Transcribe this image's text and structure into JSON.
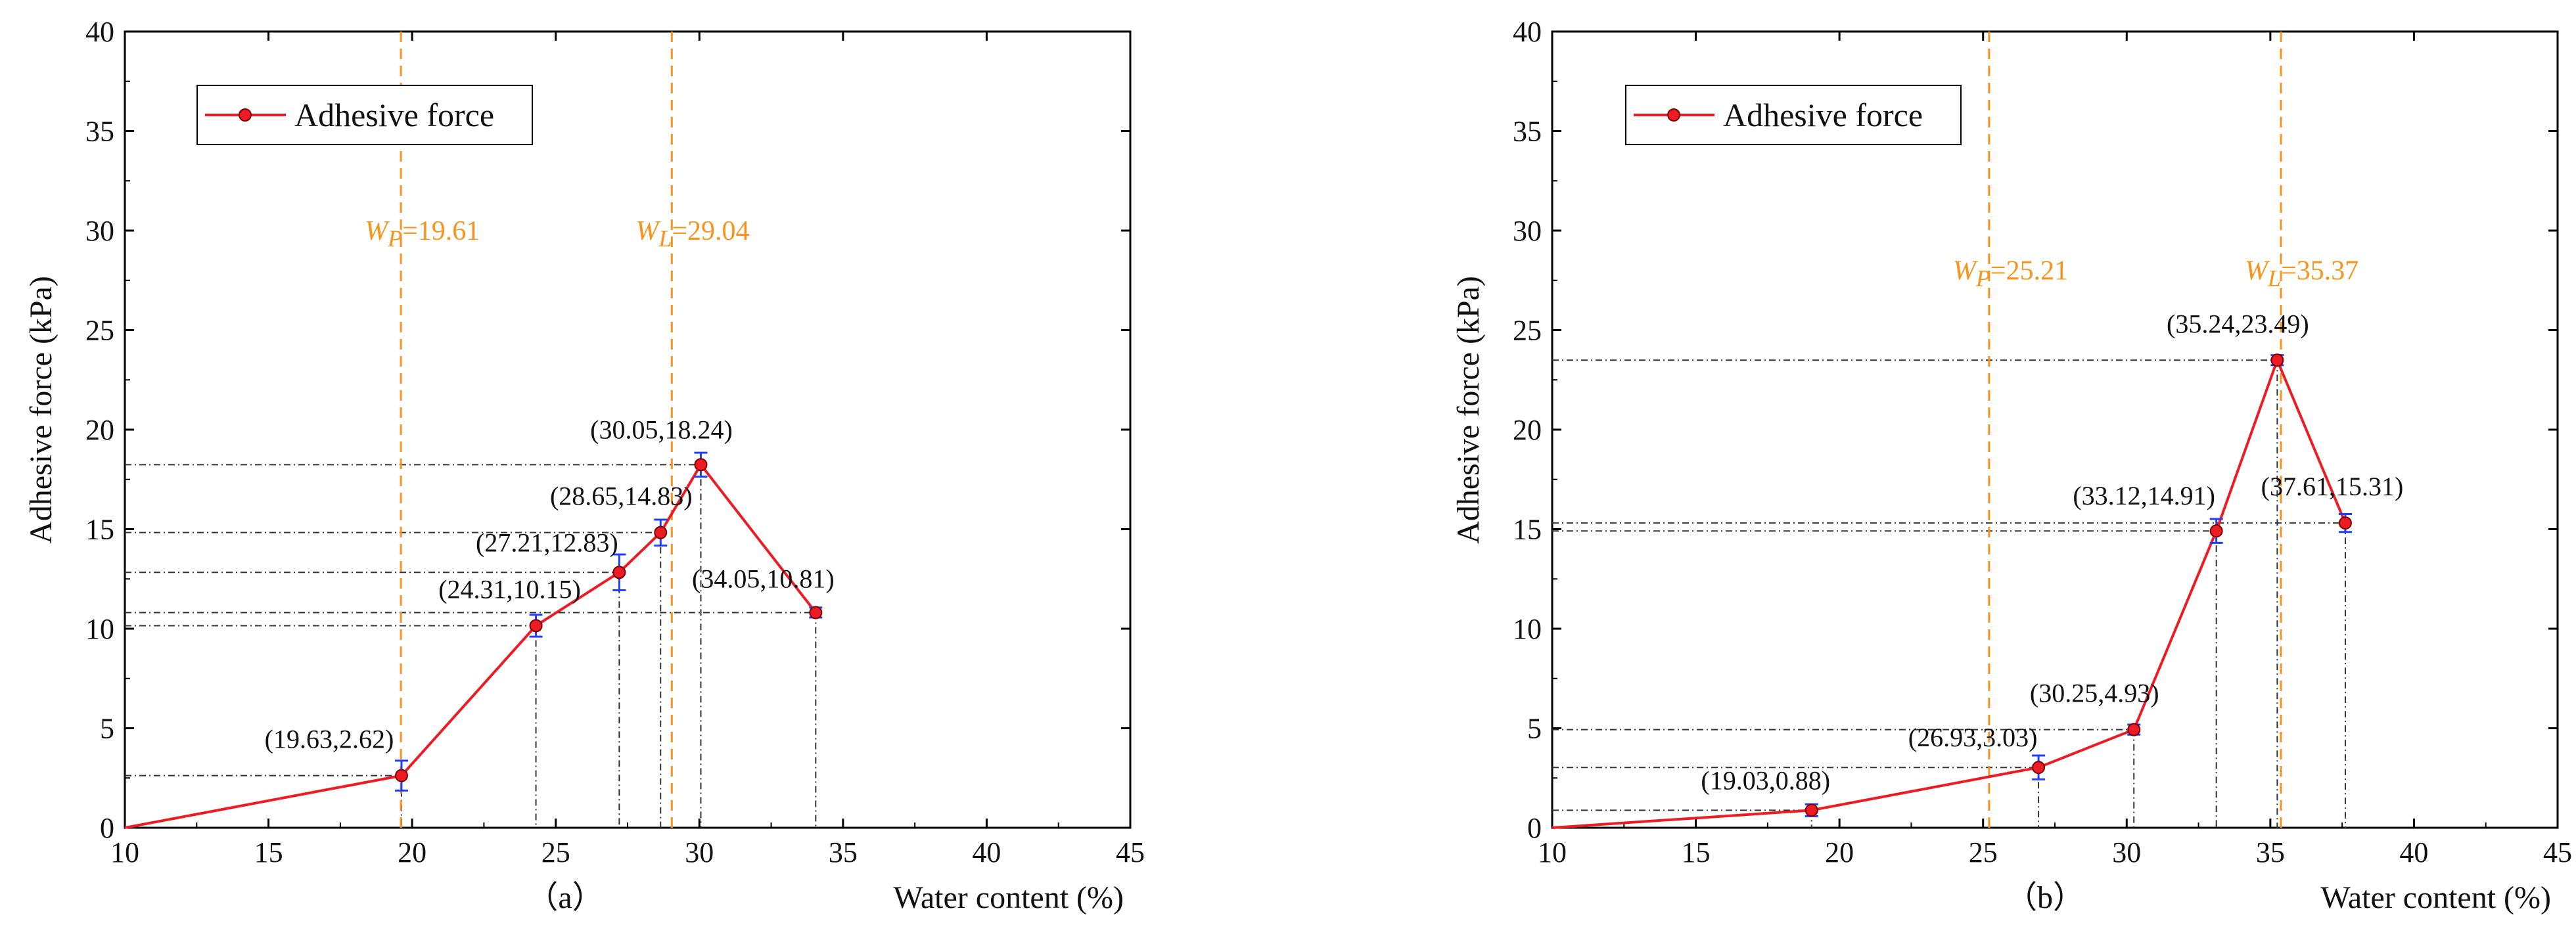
{
  "chart_data": [
    {
      "type": "line",
      "panel_label": "（a）",
      "xlabel": "Water content (%)",
      "ylabel": "Adhesive force (kPa)",
      "xlim": [
        10,
        45
      ],
      "ylim": [
        0,
        40
      ],
      "xticks": [
        "10",
        "15",
        "20",
        "25",
        "30",
        "35",
        "40",
        "45"
      ],
      "yticks": [
        "0",
        "5",
        "10",
        "15",
        "20",
        "25",
        "30",
        "35",
        "40"
      ],
      "legend": "Adhesive force",
      "line_color": "#ED1C24",
      "error_color": "#1F3FFF",
      "limit_color": "#F7941D",
      "points": [
        {
          "x": 10.0,
          "y": 0.0,
          "err": 0,
          "label": ""
        },
        {
          "x": 19.63,
          "y": 2.62,
          "err": 0.75,
          "label": "(19.63,2.62)"
        },
        {
          "x": 24.31,
          "y": 10.15,
          "err": 0.55,
          "label": "(24.31,10.15)"
        },
        {
          "x": 27.21,
          "y": 12.83,
          "err": 0.9,
          "label": "(27.21,12.83)"
        },
        {
          "x": 28.65,
          "y": 14.83,
          "err": 0.65,
          "label": "(28.65,14.83)"
        },
        {
          "x": 30.05,
          "y": 18.24,
          "err": 0.6,
          "label": "(30.05,18.24)"
        },
        {
          "x": 34.05,
          "y": 10.81,
          "err": 0.25,
          "label": "(34.05,10.81)"
        }
      ],
      "limits": [
        {
          "value": 19.61,
          "symbol": "W",
          "sub": "P",
          "text": "=19.61",
          "label_y": 30
        },
        {
          "value": 29.04,
          "symbol": "W",
          "sub": "L",
          "text": "=29.04",
          "label_y": 30
        }
      ]
    },
    {
      "type": "line",
      "panel_label": "（b）",
      "xlabel": "Water content (%)",
      "ylabel": "Adhesive force (kPa)",
      "xlim": [
        10,
        45
      ],
      "ylim": [
        0,
        40
      ],
      "xticks": [
        "10",
        "15",
        "20",
        "25",
        "30",
        "35",
        "40",
        "45"
      ],
      "yticks": [
        "0",
        "5",
        "10",
        "15",
        "20",
        "25",
        "30",
        "35",
        "40"
      ],
      "legend": "Adhesive force",
      "line_color": "#ED1C24",
      "error_color": "#1F3FFF",
      "limit_color": "#F7941D",
      "points": [
        {
          "x": 10.0,
          "y": 0.0,
          "err": 0,
          "label": ""
        },
        {
          "x": 19.03,
          "y": 0.88,
          "err": 0.3,
          "label": "(19.03,0.88)"
        },
        {
          "x": 26.93,
          "y": 3.03,
          "err": 0.6,
          "label": "(26.93,3.03)"
        },
        {
          "x": 30.25,
          "y": 4.93,
          "err": 0.25,
          "label": "(30.25,4.93)"
        },
        {
          "x": 33.12,
          "y": 14.91,
          "err": 0.6,
          "label": "(33.12,14.91)"
        },
        {
          "x": 35.24,
          "y": 23.49,
          "err": 0.25,
          "label": "(35.24,23.49)"
        },
        {
          "x": 37.61,
          "y": 15.31,
          "err": 0.45,
          "label": "(37.61,15.31)"
        }
      ],
      "limits": [
        {
          "value": 25.21,
          "symbol": "W",
          "sub": "P",
          "text": "=25.21",
          "label_y": 28
        },
        {
          "value": 35.37,
          "symbol": "W",
          "sub": "L",
          "text": "=35.37",
          "label_y": 28
        }
      ]
    }
  ]
}
